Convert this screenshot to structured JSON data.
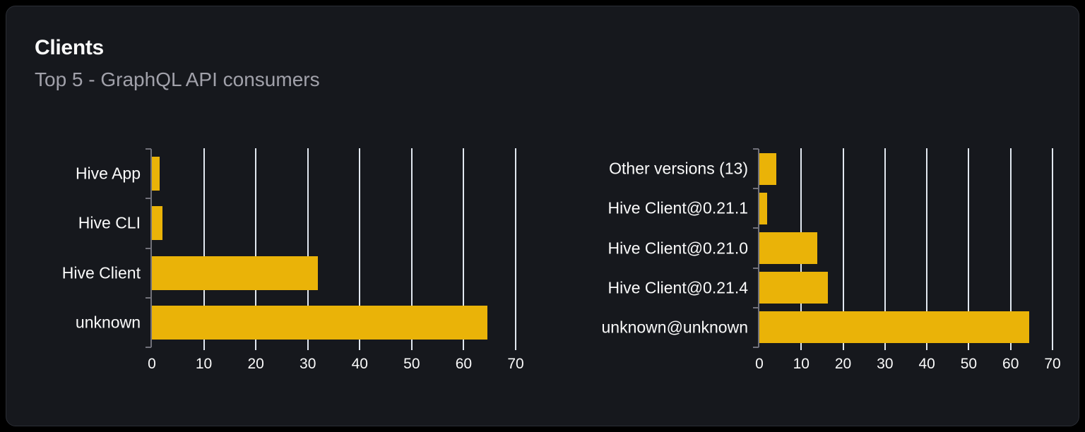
{
  "card": {
    "title": "Clients",
    "subtitle": "Top 5 - GraphQL API consumers"
  },
  "colors": {
    "page_bg": "#000000",
    "card_bg": "#16181d",
    "card_border": "#2b2e35",
    "title_text": "#fafafa",
    "subtitle_text": "#a1a1aa",
    "label_text": "#fafafa",
    "bar": "#eab308",
    "gridline": "#e2e8f0",
    "axis": "#71717a"
  },
  "chart_data": [
    {
      "type": "bar",
      "orientation": "horizontal",
      "categories": [
        "Hive App",
        "Hive CLI",
        "Hive Client",
        "unknown"
      ],
      "values": [
        1.5,
        2,
        32,
        64.5
      ],
      "xticks": [
        0,
        10,
        20,
        30,
        40,
        50,
        60,
        70
      ],
      "xlim": [
        0,
        70
      ],
      "grid": true,
      "legend": "none",
      "bar_color": "#eab308"
    },
    {
      "type": "bar",
      "orientation": "horizontal",
      "categories": [
        "Other versions (13)",
        "Hive Client@0.21.1",
        "Hive Client@0.21.0",
        "Hive Client@0.21.4",
        "unknown@unknown"
      ],
      "values": [
        4,
        1.8,
        13.8,
        16.4,
        64.4
      ],
      "xticks": [
        0,
        10,
        20,
        30,
        40,
        50,
        60,
        70
      ],
      "xlim": [
        0,
        70
      ],
      "grid": true,
      "legend": "none",
      "bar_color": "#eab308"
    }
  ]
}
